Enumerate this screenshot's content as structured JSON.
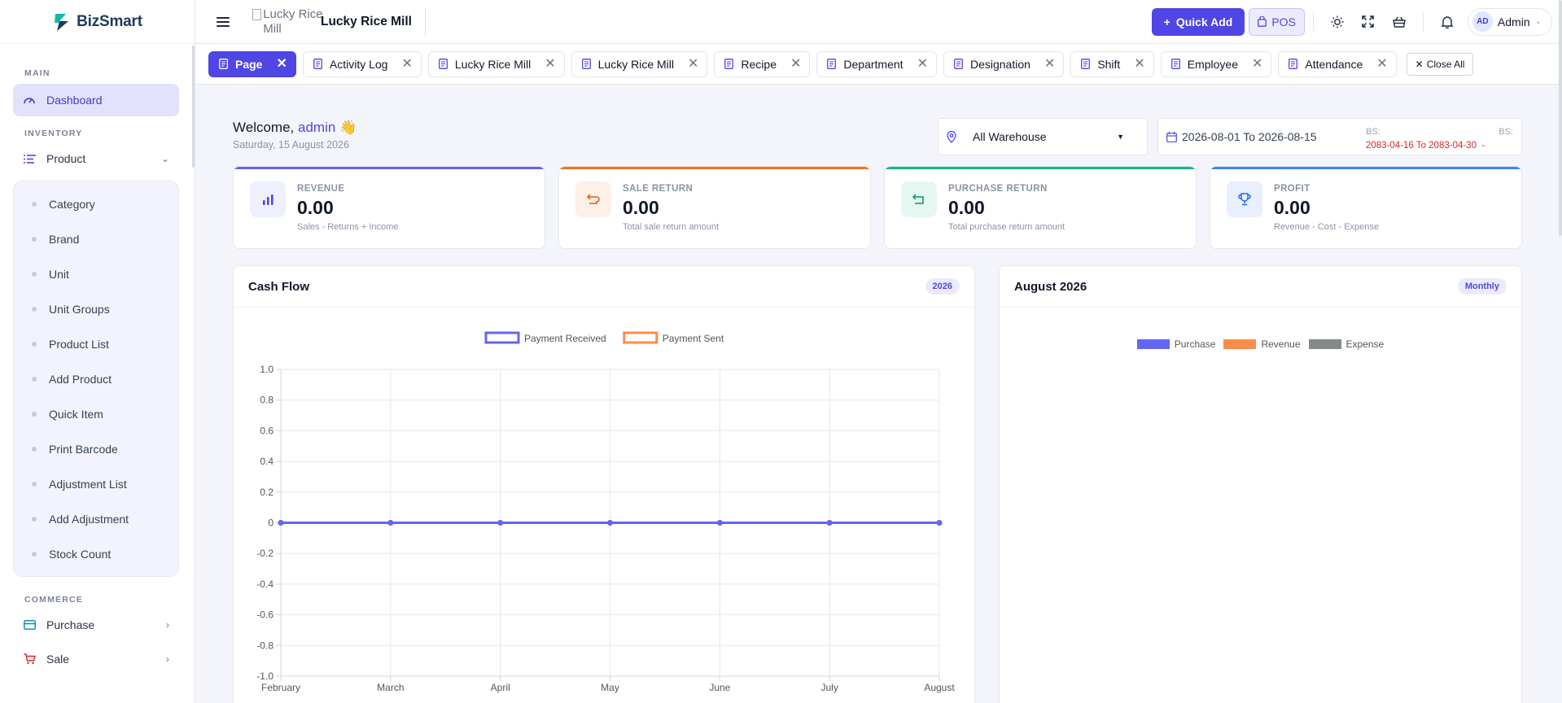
{
  "brand": {
    "name": "BizSmart"
  },
  "sidebar": {
    "sections": {
      "main": "MAIN",
      "inventory": "INVENTORY",
      "commerce": "COMMERCE"
    },
    "dashboard": "Dashboard",
    "product": "Product",
    "product_items": [
      "Category",
      "Brand",
      "Unit",
      "Unit Groups",
      "Product List",
      "Add Product",
      "Quick Item",
      "Print Barcode",
      "Adjustment List",
      "Add Adjustment",
      "Stock Count"
    ],
    "purchase": "Purchase",
    "sale": "Sale"
  },
  "topbar": {
    "logo_alt": "Lucky Rice Mill",
    "company_name": "Lucky Rice Mill",
    "quick_add": "Quick Add",
    "pos": "POS",
    "user_initials": "AD",
    "user_name": "Admin"
  },
  "tabs": [
    "Page",
    "Activity Log",
    "Lucky Rice Mill",
    "Lucky Rice Mill",
    "Recipe",
    "Department",
    "Designation",
    "Shift",
    "Employee",
    "Attendance"
  ],
  "close_all": "Close All",
  "welcome": {
    "greeting": "Welcome,",
    "name": "admin",
    "emoji": "👋",
    "date": "Saturday, 15 August 2026"
  },
  "filters": {
    "warehouse": "All Warehouse",
    "date_range": "2026-08-01 To 2026-08-15",
    "bs_label": "BS:",
    "bs_range": "2083-04-16 To 2083-04-30",
    "bs_label_2": "BS:",
    "bs_dash": "-"
  },
  "stats": [
    {
      "label": "REVENUE",
      "value": "0.00",
      "sub": "Sales - Returns + Income",
      "color": "#6366f1"
    },
    {
      "label": "SALE RETURN",
      "value": "0.00",
      "sub": "Total sale return amount",
      "color": "#f97316"
    },
    {
      "label": "PURCHASE RETURN",
      "value": "0.00",
      "sub": "Total purchase return amount",
      "color": "#10b981"
    },
    {
      "label": "PROFIT",
      "value": "0.00",
      "sub": "Revenue - Cost - Expense",
      "color": "#3b82f6"
    }
  ],
  "cashflow": {
    "title": "Cash Flow",
    "badge": "2026"
  },
  "august": {
    "title": "August 2026",
    "badge": "Monthly",
    "legend": [
      "Purchase",
      "Revenue",
      "Expense"
    ],
    "colors": [
      "#6366f1",
      "#fb8c4d",
      "#868a87"
    ]
  },
  "chart_data": {
    "type": "line",
    "x": [
      "February",
      "March",
      "April",
      "May",
      "June",
      "July",
      "August"
    ],
    "series": [
      {
        "name": "Payment Received",
        "values": [
          0,
          0,
          0,
          0,
          0,
          0,
          0
        ],
        "color": "#6366f1"
      },
      {
        "name": "Payment Sent",
        "values": [
          0,
          0,
          0,
          0,
          0,
          0,
          0
        ],
        "color": "#fb8c4d"
      }
    ],
    "ylim": [
      -1.0,
      1.0
    ],
    "yticks": [
      "1.0",
      "0.8",
      "0.6",
      "0.4",
      "0.2",
      "0",
      "-0.2",
      "-0.4",
      "-0.6",
      "-0.8",
      "-1.0"
    ],
    "grid": true,
    "legend": "top-center"
  }
}
